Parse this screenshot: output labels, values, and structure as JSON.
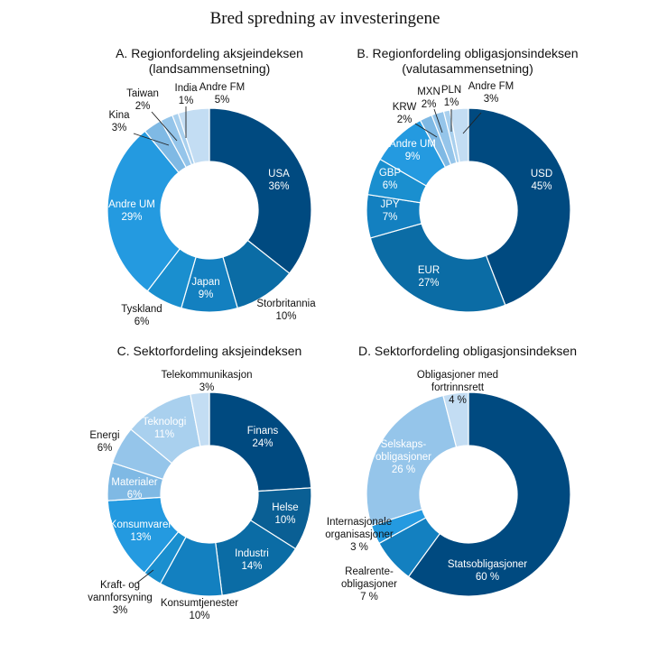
{
  "figure_title": "Bred spredning av investeringene",
  "chart_data": [
    {
      "type": "pie",
      "donut": true,
      "title": "A. Regionfordeling aksjeindeksen",
      "subtitle": "(landsammensetning)",
      "slices": [
        {
          "label": "USA",
          "value": 36,
          "value_label": "36%",
          "color": "#004a80",
          "label_pos": "inside"
        },
        {
          "label": "Storbritannia",
          "value": 10,
          "value_label": "10%",
          "color": "#0b6ca5",
          "label_pos": "outside"
        },
        {
          "label": "Japan",
          "value": 9,
          "value_label": "9%",
          "color": "#1380c0",
          "label_pos": "inside"
        },
        {
          "label": "Tyskland",
          "value": 6,
          "value_label": "6%",
          "color": "#1a8fcf",
          "label_pos": "outside"
        },
        {
          "label": "Andre UM",
          "value": 29,
          "value_label": "29%",
          "color": "#249ae0",
          "label_pos": "inside"
        },
        {
          "label": "Kina",
          "value": 3,
          "value_label": "3%",
          "color": "#7fb9e4",
          "label_pos": "outside"
        },
        {
          "label": "Taiwan",
          "value": 2,
          "value_label": "2%",
          "color": "#95c5ea",
          "label_pos": "outside"
        },
        {
          "label": "India",
          "value": 1,
          "value_label": "1%",
          "color": "#a9d0ee",
          "label_pos": "outside"
        },
        {
          "label": "Andre FM",
          "value": 5,
          "value_label": "5%",
          "color": "#c3ddf3",
          "label_pos": "outside"
        }
      ]
    },
    {
      "type": "pie",
      "donut": true,
      "title": "B. Regionfordeling obligasjonsindeksen",
      "subtitle": "(valutasammensetning)",
      "slices": [
        {
          "label": "USD",
          "value": 45,
          "value_label": "45%",
          "color": "#004a80",
          "label_pos": "inside"
        },
        {
          "label": "EUR",
          "value": 27,
          "value_label": "27%",
          "color": "#0b6ca5",
          "label_pos": "inside"
        },
        {
          "label": "JPY",
          "value": 7,
          "value_label": "7%",
          "color": "#1380c0",
          "label_pos": "inside"
        },
        {
          "label": "GBP",
          "value": 6,
          "value_label": "6%",
          "color": "#1a8fcf",
          "label_pos": "inside"
        },
        {
          "label": "Andre UM",
          "value": 9,
          "value_label": "9%",
          "color": "#249ae0",
          "label_pos": "inside"
        },
        {
          "label": "KRW",
          "value": 2,
          "value_label": "2%",
          "color": "#7fb9e4",
          "label_pos": "outside"
        },
        {
          "label": "MXN",
          "value": 2,
          "value_label": "2%",
          "color": "#95c5ea",
          "label_pos": "outside"
        },
        {
          "label": "PLN",
          "value": 1,
          "value_label": "1%",
          "color": "#a9d0ee",
          "label_pos": "outside"
        },
        {
          "label": "Andre FM",
          "value": 3,
          "value_label": "3%",
          "color": "#c3ddf3",
          "label_pos": "outside"
        }
      ]
    },
    {
      "type": "pie",
      "donut": true,
      "title": "C. Sektorfordeling aksjeindeksen",
      "slices": [
        {
          "label": "Finans",
          "value": 24,
          "value_label": "24%",
          "color": "#004a80",
          "label_pos": "inside"
        },
        {
          "label": "Helse",
          "value": 10,
          "value_label": "10%",
          "color": "#0a5f94",
          "label_pos": "inside"
        },
        {
          "label": "Industri",
          "value": 14,
          "value_label": "14%",
          "color": "#0b6ca5",
          "label_pos": "inside"
        },
        {
          "label": "Konsumtjenester",
          "value": 10,
          "value_label": "10%",
          "color": "#1380c0",
          "label_pos": "outside"
        },
        {
          "label": "Kraft- og vannforsyning",
          "value": 3,
          "value_label": "3%",
          "color": "#1a8fcf",
          "label_pos": "outside"
        },
        {
          "label": "Konsumvarer",
          "value": 13,
          "value_label": "13%",
          "color": "#249ae0",
          "label_pos": "inside"
        },
        {
          "label": "Materialer",
          "value": 6,
          "value_label": "6%",
          "color": "#7fb9e4",
          "label_pos": "inside"
        },
        {
          "label": "Energi",
          "value": 6,
          "value_label": "6%",
          "color": "#95c5ea",
          "label_pos": "outside"
        },
        {
          "label": "Teknologi",
          "value": 11,
          "value_label": "11%",
          "color": "#a9d0ee",
          "label_pos": "inside"
        },
        {
          "label": "Telekommunikasjon",
          "value": 3,
          "value_label": "3%",
          "color": "#c3ddf3",
          "label_pos": "outside"
        }
      ]
    },
    {
      "type": "pie",
      "donut": true,
      "title": "D. Sektorfordeling obligasjonsindeksen",
      "slices": [
        {
          "label": "Statsobligasjoner",
          "value": 60,
          "value_label": "60 %",
          "color": "#004a80",
          "label_pos": "inside"
        },
        {
          "label": "Realrente-obligasjoner",
          "value": 7,
          "value_label": "7 %",
          "color": "#1380c0",
          "label_pos": "outside"
        },
        {
          "label": "Internasjonale organisasjoner",
          "value": 3,
          "value_label": "3 %",
          "color": "#249ae0",
          "label_pos": "outside"
        },
        {
          "label": "Selskaps-obligasjoner",
          "value": 26,
          "value_label": "26 %",
          "color": "#95c5ea",
          "label_pos": "inside"
        },
        {
          "label": "Obligasjoner med fortrinnsrett",
          "value": 4,
          "value_label": "4 %",
          "color": "#c3ddf3",
          "label_pos": "outside"
        }
      ]
    }
  ]
}
